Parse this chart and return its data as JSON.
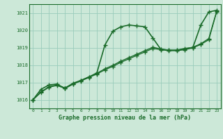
{
  "title": "Graphe pression niveau de la mer (hPa)",
  "bg_color": "#cce8d8",
  "grid_color": "#99ccbb",
  "line_color": "#1a6b2a",
  "xlim": [
    -0.5,
    23.5
  ],
  "ylim": [
    1015.5,
    1021.5
  ],
  "yticks": [
    1016,
    1017,
    1018,
    1019,
    1020,
    1021
  ],
  "ytick_labels": [
    "1016",
    "1017",
    "1018",
    "1019",
    "1020",
    "1021"
  ],
  "xticks": [
    0,
    1,
    2,
    3,
    4,
    5,
    6,
    7,
    8,
    9,
    10,
    11,
    12,
    13,
    14,
    15,
    16,
    17,
    18,
    19,
    20,
    21,
    22,
    23
  ],
  "series": [
    {
      "x": [
        0,
        1,
        2,
        3,
        4,
        5,
        6,
        7,
        8,
        9,
        10,
        11,
        12,
        13,
        14,
        15,
        16,
        17,
        18,
        19,
        20,
        21,
        22,
        23
      ],
      "y": [
        1016.0,
        1016.6,
        1016.85,
        1016.9,
        1016.65,
        1016.9,
        1017.1,
        1017.3,
        1017.55,
        1019.15,
        1019.95,
        1020.2,
        1020.3,
        1020.25,
        1020.2,
        1019.55,
        1018.9,
        1018.85,
        1018.85,
        1018.95,
        1019.0,
        1020.3,
        1021.05,
        1021.15
      ],
      "marker": "+",
      "markersize": 5,
      "linewidth": 1.2
    },
    {
      "x": [
        0,
        1,
        2,
        3,
        4,
        5,
        6,
        7,
        8,
        9,
        10,
        11,
        12,
        13,
        14,
        15,
        16,
        17,
        18,
        19,
        20,
        21,
        22,
        23
      ],
      "y": [
        1016.0,
        1016.45,
        1016.75,
        1016.85,
        1016.68,
        1016.95,
        1017.12,
        1017.32,
        1017.52,
        1017.78,
        1017.98,
        1018.22,
        1018.42,
        1018.62,
        1018.82,
        1019.02,
        1018.92,
        1018.85,
        1018.85,
        1018.92,
        1019.02,
        1019.22,
        1019.52,
        1021.12
      ],
      "marker": "+",
      "markersize": 4,
      "linewidth": 1.0
    },
    {
      "x": [
        0,
        1,
        2,
        3,
        4,
        5,
        6,
        7,
        8,
        9,
        10,
        11,
        12,
        13,
        14,
        15,
        16,
        17,
        18,
        19,
        20,
        21,
        22,
        23
      ],
      "y": [
        1016.0,
        1016.42,
        1016.72,
        1016.82,
        1016.65,
        1016.92,
        1017.08,
        1017.28,
        1017.48,
        1017.72,
        1017.92,
        1018.15,
        1018.35,
        1018.55,
        1018.75,
        1018.95,
        1018.88,
        1018.82,
        1018.82,
        1018.88,
        1018.98,
        1019.18,
        1019.45,
        1021.08
      ],
      "marker": "+",
      "markersize": 4,
      "linewidth": 0.9
    }
  ]
}
